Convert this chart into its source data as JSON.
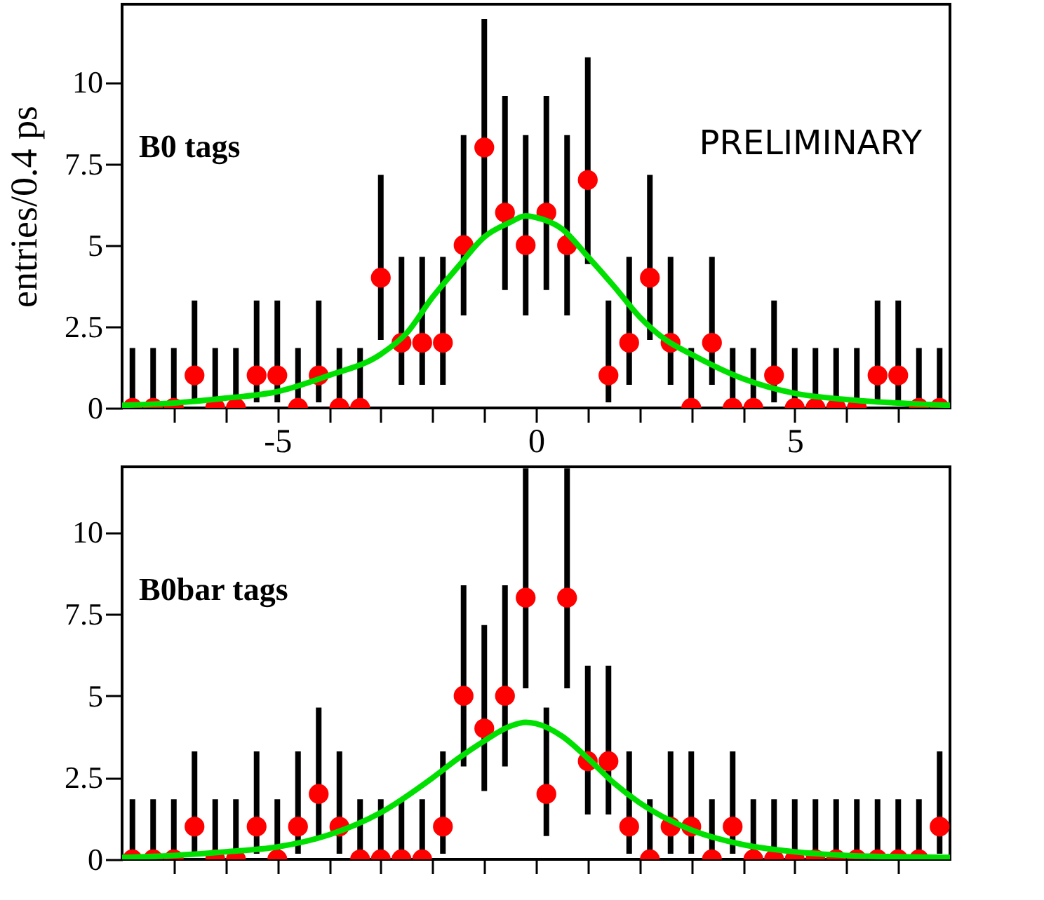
{
  "chart_data": [
    {
      "type": "scatter",
      "ylabel": "entries/0.4 ps",
      "annotations": [
        "B0 tags",
        "PRELIMINARY"
      ],
      "xlim": [
        -8,
        8
      ],
      "ylim": [
        0,
        12.4
      ],
      "xticks": [
        {
          "value": -7,
          "label": null
        },
        {
          "value": -6,
          "label": null
        },
        -5,
        {
          "value": -4,
          "label": null
        },
        {
          "value": -3,
          "label": null
        },
        {
          "value": -2,
          "label": null
        },
        {
          "value": -1,
          "label": null
        },
        0,
        {
          "value": 1,
          "label": null
        },
        {
          "value": 2,
          "label": null
        },
        {
          "value": 3,
          "label": null
        },
        {
          "value": 4,
          "label": null
        },
        5,
        {
          "value": 6,
          "label": null
        },
        {
          "value": 7,
          "label": null
        }
      ],
      "yticks": [
        0,
        2.5,
        5,
        7.5,
        10
      ],
      "grid": false,
      "series": [
        {
          "marker": "circle",
          "color": "#ff0000",
          "x": [
            -7.8,
            -7.4,
            -7.0,
            -6.6,
            -6.2,
            -5.8,
            -5.4,
            -5.0,
            -4.6,
            -4.2,
            -3.8,
            -3.4,
            -3.0,
            -2.6,
            -2.2,
            -1.8,
            -1.4,
            -1.0,
            -0.6,
            -0.2,
            0.2,
            0.6,
            1.0,
            1.4,
            1.8,
            2.2,
            2.6,
            3.0,
            3.4,
            3.8,
            4.2,
            4.6,
            5.0,
            5.4,
            5.8,
            6.2,
            6.6,
            7.0,
            7.4,
            7.8
          ],
          "values": [
            0,
            0,
            0,
            1,
            0,
            0,
            1,
            1,
            0,
            1,
            0,
            0,
            4,
            2,
            2,
            2,
            5,
            8,
            6,
            5,
            6,
            5,
            7,
            1,
            2,
            4,
            2,
            0,
            2,
            0,
            0,
            1,
            0,
            0,
            0,
            0,
            1,
            1,
            0,
            0
          ],
          "errors": [
            [
              0,
              1.84
            ],
            [
              0,
              1.84
            ],
            [
              0,
              1.84
            ],
            [
              0.17,
              3.3
            ],
            [
              0,
              1.84
            ],
            [
              0,
              1.84
            ],
            [
              0.17,
              3.3
            ],
            [
              0.17,
              3.3
            ],
            [
              0,
              1.84
            ],
            [
              0.17,
              3.3
            ],
            [
              0,
              1.84
            ],
            [
              0,
              1.84
            ],
            [
              2.09,
              7.16
            ],
            [
              0.71,
              4.64
            ],
            [
              0.71,
              4.64
            ],
            [
              0.71,
              4.64
            ],
            [
              2.84,
              8.38
            ],
            [
              5.23,
              11.95
            ],
            [
              3.62,
              9.58
            ],
            [
              2.84,
              8.38
            ],
            [
              3.62,
              9.58
            ],
            [
              2.84,
              8.38
            ],
            [
              4.42,
              10.77
            ],
            [
              0.17,
              3.3
            ],
            [
              0.71,
              4.64
            ],
            [
              2.09,
              7.16
            ],
            [
              0.71,
              4.64
            ],
            [
              0,
              1.84
            ],
            [
              0.71,
              4.64
            ],
            [
              0,
              1.84
            ],
            [
              0,
              1.84
            ],
            [
              0.17,
              3.3
            ],
            [
              0,
              1.84
            ],
            [
              0,
              1.84
            ],
            [
              0,
              1.84
            ],
            [
              0,
              1.84
            ],
            [
              0.17,
              3.3
            ],
            [
              0.17,
              3.3
            ],
            [
              0,
              1.84
            ],
            [
              0,
              1.84
            ]
          ]
        },
        {
          "type": "line",
          "color": "#00e000",
          "line_style": "solid",
          "x": [
            -8,
            -7,
            -6,
            -5,
            -4,
            -3,
            -2.5,
            -2,
            -1.5,
            -1,
            -0.5,
            -0.2,
            0,
            0.5,
            1,
            1.5,
            2,
            2.5,
            3,
            4,
            5,
            6,
            7,
            8
          ],
          "values": [
            0.08,
            0.15,
            0.3,
            0.5,
            1.0,
            1.65,
            2.3,
            3.4,
            4.35,
            5.25,
            5.7,
            5.9,
            5.85,
            5.5,
            4.65,
            3.75,
            2.8,
            2.1,
            1.65,
            0.9,
            0.45,
            0.26,
            0.15,
            0.08
          ]
        }
      ]
    },
    {
      "type": "scatter",
      "annotations": [
        "B0bar tags"
      ],
      "xlim": [
        -8,
        8
      ],
      "ylim": [
        0,
        12
      ],
      "tick_labels": "y",
      "xticks": [
        {
          "value": -7,
          "label": null
        },
        {
          "value": -6,
          "label": null
        },
        -5,
        {
          "value": -4,
          "label": null
        },
        {
          "value": -3,
          "label": null
        },
        {
          "value": -2,
          "label": null
        },
        {
          "value": -1,
          "label": null
        },
        0,
        {
          "value": 1,
          "label": null
        },
        {
          "value": 2,
          "label": null
        },
        {
          "value": 3,
          "label": null
        },
        {
          "value": 4,
          "label": null
        },
        5,
        {
          "value": 6,
          "label": null
        },
        {
          "value": 7,
          "label": null
        }
      ],
      "yticks": [
        0,
        2.5,
        5,
        7.5,
        10
      ],
      "grid": false,
      "series": [
        {
          "marker": "circle",
          "color": "#ff0000",
          "x": [
            -7.8,
            -7.4,
            -7.0,
            -6.6,
            -6.2,
            -5.8,
            -5.4,
            -5.0,
            -4.6,
            -4.2,
            -3.8,
            -3.4,
            -3.0,
            -2.6,
            -2.2,
            -1.8,
            -1.4,
            -1.0,
            -0.6,
            -0.2,
            0.2,
            0.6,
            1.0,
            1.4,
            1.8,
            2.2,
            2.6,
            3.0,
            3.4,
            3.8,
            4.2,
            4.6,
            5.0,
            5.4,
            5.8,
            6.2,
            6.6,
            7.0,
            7.4,
            7.8
          ],
          "values": [
            0,
            0,
            0,
            1,
            0,
            0,
            1,
            0,
            1,
            2,
            1,
            0,
            0,
            0,
            0,
            1,
            5,
            4,
            5,
            8,
            2,
            8,
            3,
            3,
            1,
            0,
            1,
            1,
            0,
            1,
            0,
            0,
            0,
            0,
            0,
            0,
            0,
            0,
            0,
            1
          ],
          "errors": [
            [
              0,
              1.84
            ],
            [
              0,
              1.84
            ],
            [
              0,
              1.84
            ],
            [
              0.17,
              3.3
            ],
            [
              0,
              1.84
            ],
            [
              0,
              1.84
            ],
            [
              0.17,
              3.3
            ],
            [
              0,
              1.84
            ],
            [
              0.17,
              3.3
            ],
            [
              0.71,
              4.64
            ],
            [
              0.17,
              3.3
            ],
            [
              0,
              1.84
            ],
            [
              0,
              1.84
            ],
            [
              0,
              1.84
            ],
            [
              0,
              1.84
            ],
            [
              0.17,
              3.3
            ],
            [
              2.84,
              8.38
            ],
            [
              2.09,
              7.16
            ],
            [
              2.84,
              8.38
            ],
            [
              5.23,
              11.95
            ],
            [
              0.71,
              4.64
            ],
            [
              5.23,
              11.95
            ],
            [
              1.37,
              5.92
            ],
            [
              1.37,
              5.92
            ],
            [
              0.17,
              3.3
            ],
            [
              0,
              1.84
            ],
            [
              0.17,
              3.3
            ],
            [
              0.17,
              3.3
            ],
            [
              0,
              1.84
            ],
            [
              0.17,
              3.3
            ],
            [
              0,
              1.84
            ],
            [
              0,
              1.84
            ],
            [
              0,
              1.84
            ],
            [
              0,
              1.84
            ],
            [
              0,
              1.84
            ],
            [
              0,
              1.84
            ],
            [
              0,
              1.84
            ],
            [
              0,
              1.84
            ],
            [
              0,
              1.84
            ],
            [
              0.17,
              3.3
            ]
          ]
        },
        {
          "type": "line",
          "color": "#00e000",
          "line_style": "solid",
          "x": [
            -8,
            -7,
            -6,
            -5,
            -4,
            -3,
            -2,
            -1.5,
            -1,
            -0.5,
            -0.2,
            0,
            0.5,
            1,
            1.5,
            2,
            3,
            4,
            5,
            6,
            7,
            8
          ],
          "values": [
            0.06,
            0.12,
            0.23,
            0.38,
            0.75,
            1.43,
            2.49,
            3.09,
            3.62,
            4.07,
            4.19,
            4.15,
            3.77,
            3.09,
            2.34,
            1.73,
            0.9,
            0.45,
            0.23,
            0.12,
            0.08,
            0.06
          ]
        }
      ]
    }
  ]
}
